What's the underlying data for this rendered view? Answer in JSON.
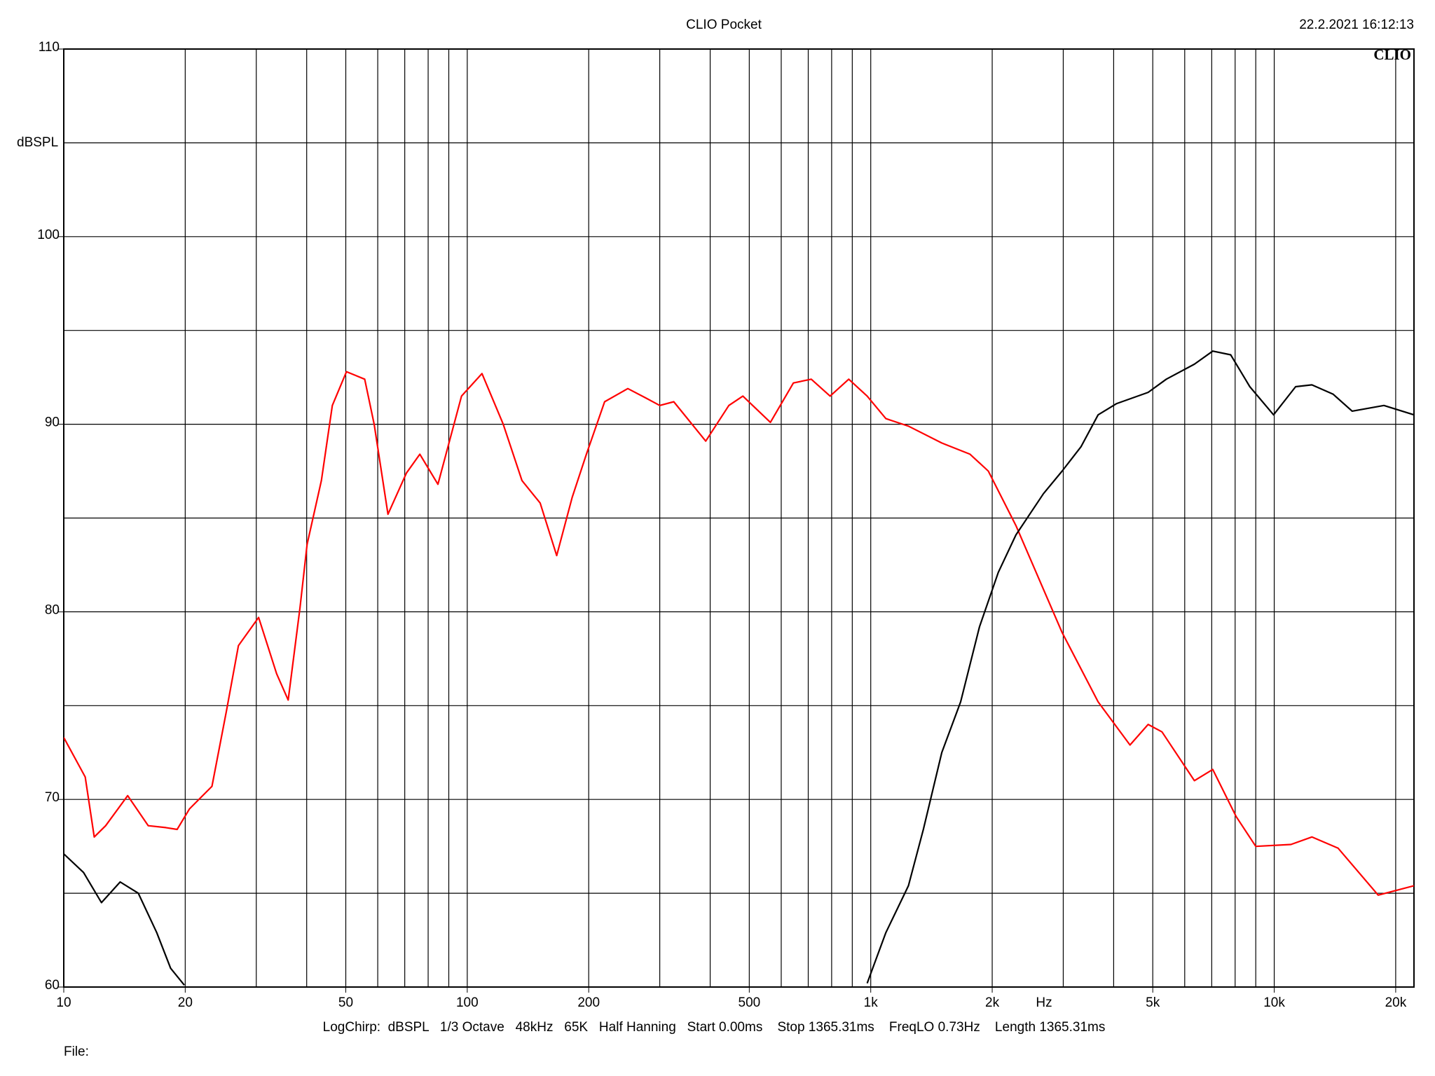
{
  "chart_data": {
    "type": "line",
    "title": "CLIO Pocket",
    "timestamp": "22.2.2021 16:12:13",
    "brand": "CLIO",
    "y_label": "dBSPL",
    "x_label": "Hz",
    "footer": "LogChirp:  dBSPL   1/3 Octave   48kHz   65K   Half Hanning   Start 0.00ms    Stop 1365.31ms    FreqLO 0.73Hz    Length 1365.31ms",
    "file_label": "File:",
    "log_x": true,
    "grid": true,
    "xlim": [
      10,
      22200
    ],
    "ylim": [
      60,
      110
    ],
    "xticks": [
      10,
      20,
      50,
      100,
      200,
      500,
      {
        "value": 1000,
        "label": "1k"
      },
      {
        "value": 2000,
        "label": "2k"
      },
      {
        "value": 5000,
        "label": "5k"
      },
      {
        "value": 10000,
        "label": "10k"
      },
      {
        "value": 20000,
        "label": "20k"
      }
    ],
    "xminor": [
      30,
      40,
      60,
      70,
      80,
      90,
      300,
      400,
      600,
      700,
      800,
      900,
      3000,
      4000,
      6000,
      7000,
      8000,
      9000
    ],
    "yticks": [
      60,
      70,
      80,
      90,
      100,
      110
    ],
    "yminor": [
      65,
      75,
      85,
      95,
      105
    ],
    "series": [
      {
        "color": "#ff0000",
        "x": [
          10,
          11.3,
          11.9,
          12.7,
          14.4,
          16.2,
          17.9,
          19.1,
          20.5,
          23.3,
          25.3,
          27.1,
          30.4,
          33.7,
          36,
          38.5,
          40.1,
          43.5,
          46.3,
          50.2,
          55.7,
          58.8,
          63.6,
          70.7,
          76.3,
          84.6,
          96.8,
          108.8,
          122.8,
          136.6,
          151.6,
          166.6,
          182,
          197.4,
          219,
          250,
          277,
          300,
          325,
          390,
          445,
          482,
          564,
          643,
          712,
          793,
          882,
          980,
          1090,
          1240,
          1500,
          1762,
          1956,
          2290,
          2680,
          2980,
          3660,
          4390,
          4870,
          5270,
          6340,
          7040,
          8040,
          9000,
          11000,
          12400,
          14400,
          18100,
          22200
        ],
        "values": [
          73.3,
          71.2,
          68.0,
          68.6,
          70.2,
          68.6,
          68.5,
          68.4,
          69.5,
          70.7,
          74.7,
          78.2,
          79.7,
          76.7,
          75.3,
          80.2,
          83.6,
          87.0,
          91.0,
          92.8,
          92.4,
          90.0,
          85.2,
          87.4,
          88.4,
          86.8,
          91.5,
          92.7,
          90.0,
          87.0,
          85.8,
          83.0,
          86.1,
          88.4,
          91.2,
          91.9,
          91.4,
          91.0,
          91.2,
          89.1,
          91.0,
          91.5,
          90.1,
          92.2,
          92.4,
          91.5,
          92.4,
          91.5,
          90.3,
          89.9,
          89.0,
          88.4,
          87.5,
          84.6,
          81.2,
          78.9,
          75.2,
          72.9,
          74.0,
          73.6,
          71.0,
          71.6,
          69.1,
          67.5,
          67.6,
          68.0,
          67.4,
          64.9,
          65.4
        ]
      },
      {
        "color": "#000000",
        "x": [
          10,
          11.2,
          12.4,
          13.8,
          15.3,
          17,
          18.4,
          19.9,
          200,
          980,
          1090,
          1240,
          1350,
          1500,
          1670,
          1860,
          2070,
          2290,
          2680,
          2980,
          3320,
          3660,
          4070,
          4870,
          5400,
          6340,
          7040,
          7800,
          8700,
          9960,
          11300,
          12400,
          14000,
          15600,
          18700,
          22200
        ],
        "values": [
          67.1,
          66.1,
          64.5,
          65.6,
          65.0,
          62.9,
          61.0,
          60.1,
          null,
          60.2,
          62.9,
          65.4,
          68.4,
          72.5,
          75.2,
          79.2,
          82.1,
          84.1,
          86.3,
          87.5,
          88.8,
          90.5,
          91.1,
          91.7,
          92.4,
          93.2,
          93.9,
          93.7,
          92.0,
          90.5,
          92.0,
          92.1,
          91.6,
          90.7,
          91.0,
          90.5
        ]
      }
    ]
  }
}
